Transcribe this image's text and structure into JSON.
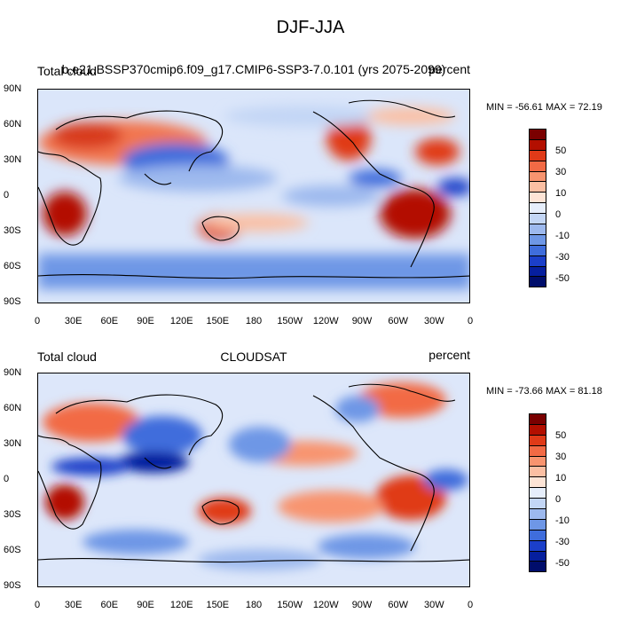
{
  "title": "DJF-JJA",
  "panels": [
    {
      "left_label": "Total cloud",
      "center_label": "b.e21.BSSP370cmip6.f09_g17.CMIP6-SSP3-7.0.101 (yrs 2075-2099)",
      "right_label": "percent",
      "minmax": "MIN = -56.61 MAX =  72.19"
    },
    {
      "left_label": "Total cloud",
      "center_label": "CLOUDSAT",
      "right_label": "percent",
      "minmax": "MIN = -73.66 MAX =  81.18"
    }
  ],
  "y_ticks": [
    "90N",
    "60N",
    "30N",
    "0",
    "30S",
    "60S",
    "90S"
  ],
  "x_ticks": [
    "0",
    "30E",
    "60E",
    "90E",
    "120E",
    "150E",
    "180",
    "150W",
    "120W",
    "90W",
    "60W",
    "30W",
    "0"
  ],
  "colorbar": {
    "labels": [
      "50",
      "30",
      "10",
      "0",
      "-10",
      "-30",
      "-50"
    ],
    "colors": [
      "#7a0000",
      "#b30f00",
      "#e03a18",
      "#f26a45",
      "#f8946f",
      "#fbbfa3",
      "#fde4d6",
      "#e6eefb",
      "#c3d6f5",
      "#9db9ee",
      "#6e97e6",
      "#3f6ddc",
      "#1b3fc9",
      "#061f9e",
      "#000d6b"
    ]
  }
}
